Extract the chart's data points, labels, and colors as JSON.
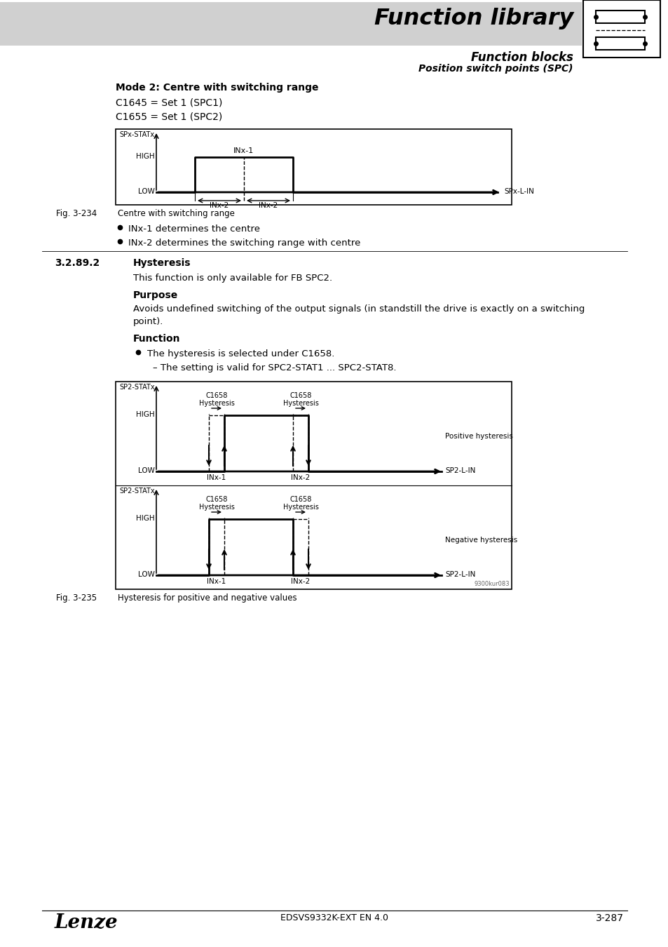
{
  "page_bg": "#ffffff",
  "header_bg": "#d0d0d0",
  "header_title": "Function library",
  "header_subtitle": "Function blocks",
  "header_subtitle2": "Position switch points (SPC)",
  "section_number": "3.2.89.2",
  "section_title": "Hysteresis",
  "mode_title": "Mode 2: Centre with switching range",
  "c1645_text": "C1645 = Set 1 (SPC1)",
  "c1655_text": "C1655 = Set 1 (SPC2)",
  "fig1_caption": "Fig. 3-234",
  "fig1_desc": "Centre with switching range",
  "bullet1": "INx-1 determines the centre",
  "bullet2": "INx-2 determines the switching range with centre",
  "hysteresis_intro": "This function is only available for FB SPC2.",
  "purpose_title": "Purpose",
  "purpose_line1": "Avoids undefined switching of the output signals (in standstill the drive is exactly on a switching",
  "purpose_line2": "point).",
  "function_title": "Function",
  "function_bullet": "The hysteresis is selected under C1658.",
  "function_sub": "– The setting is valid for SPC2-STAT1 ... SPC2-STAT8.",
  "fig2_caption": "Fig. 3-235",
  "fig2_desc": "Hysteresis for positive and negative values",
  "footer_left": "Lenze",
  "footer_center": "EDSVS9332K-EXT EN 4.0",
  "footer_right": "3-287",
  "watermark": "9300kur083"
}
